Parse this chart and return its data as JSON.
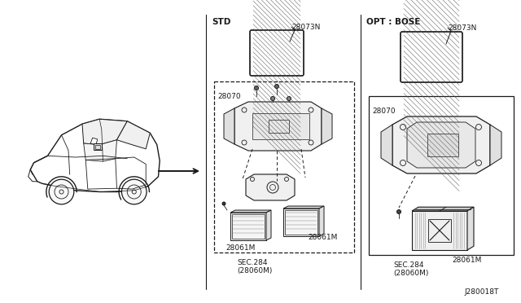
{
  "bg_color": "#ffffff",
  "line_color": "#1a1a1a",
  "fig_width": 6.4,
  "fig_height": 3.72,
  "dpi": 100,
  "diagram_id": "J280018T",
  "std_label": "STD",
  "opt_label": "OPT : BOSE",
  "std_sec": "SEC.284\n(28060M)",
  "opt_sec": "SEC.284\n(28060M)",
  "part_28073N": "28073N",
  "part_28070": "28070",
  "part_28061M": "28061M"
}
